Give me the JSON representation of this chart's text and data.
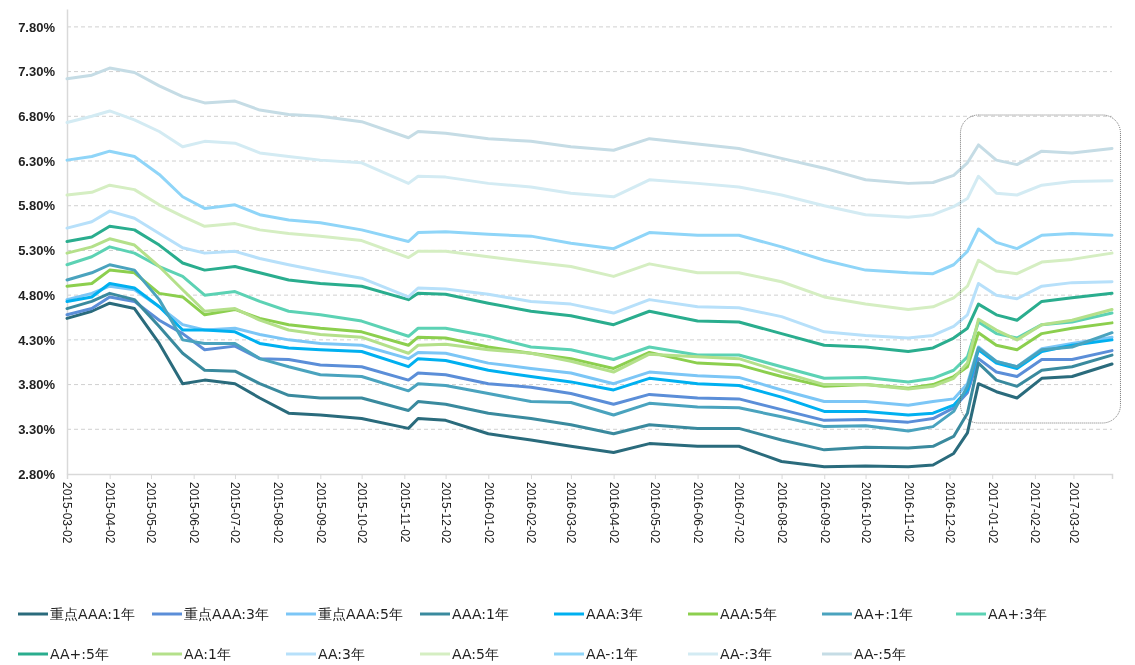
{
  "chart_data": {
    "type": "line",
    "x": [
      "2015-03-02",
      "2015-03-20",
      "2015-04-02",
      "2015-04-20",
      "2015-05-08",
      "2015-05-25",
      "2015-06-10",
      "2015-07-02",
      "2015-07-20",
      "2015-08-10",
      "2015-09-02",
      "2015-10-02",
      "2015-11-05",
      "2015-11-12",
      "2015-12-02",
      "2016-01-02",
      "2016-02-02",
      "2016-03-02",
      "2016-04-02",
      "2016-04-28",
      "2016-06-02",
      "2016-07-02",
      "2016-08-02",
      "2016-09-02",
      "2016-10-02",
      "2016-11-02",
      "2016-11-20",
      "2016-12-05",
      "2016-12-15",
      "2016-12-23",
      "2017-01-05",
      "2017-01-20",
      "2017-02-07",
      "2017-03-01",
      "2017-03-30"
    ],
    "series": [
      {
        "name": "重点AAA:1年",
        "color": "#2a6b7c",
        "values": [
          4.54,
          4.62,
          4.71,
          4.65,
          4.26,
          3.81,
          3.85,
          3.81,
          3.65,
          3.48,
          3.46,
          3.42,
          3.31,
          3.42,
          3.4,
          3.25,
          3.18,
          3.11,
          3.04,
          3.14,
          3.11,
          3.11,
          2.94,
          2.88,
          2.89,
          2.88,
          2.9,
          3.03,
          3.26,
          3.81,
          3.72,
          3.65,
          3.87,
          3.89,
          4.03
        ]
      },
      {
        "name": "重点AAA:3年",
        "color": "#5b8ed8",
        "values": [
          4.58,
          4.65,
          4.78,
          4.73,
          4.52,
          4.37,
          4.19,
          4.23,
          4.09,
          4.08,
          4.02,
          4.0,
          3.85,
          3.93,
          3.91,
          3.81,
          3.77,
          3.7,
          3.58,
          3.69,
          3.65,
          3.64,
          3.52,
          3.4,
          3.41,
          3.38,
          3.42,
          3.54,
          3.71,
          4.09,
          3.94,
          3.89,
          4.08,
          4.08,
          4.18
        ]
      },
      {
        "name": "重点AAA:5年",
        "color": "#7cc6f6",
        "values": [
          4.75,
          4.82,
          4.9,
          4.86,
          4.67,
          4.47,
          4.41,
          4.43,
          4.36,
          4.3,
          4.26,
          4.24,
          4.09,
          4.16,
          4.15,
          4.04,
          3.98,
          3.93,
          3.81,
          3.94,
          3.9,
          3.88,
          3.74,
          3.61,
          3.61,
          3.57,
          3.61,
          3.64,
          3.81,
          4.22,
          4.06,
          4.0,
          4.2,
          4.26,
          4.33
        ]
      },
      {
        "name": "AAA:1年",
        "color": "#3a8a9e",
        "values": [
          4.65,
          4.73,
          4.82,
          4.75,
          4.45,
          4.15,
          3.96,
          3.95,
          3.81,
          3.68,
          3.65,
          3.65,
          3.51,
          3.61,
          3.58,
          3.48,
          3.42,
          3.35,
          3.25,
          3.35,
          3.31,
          3.31,
          3.18,
          3.07,
          3.1,
          3.09,
          3.11,
          3.22,
          3.48,
          4.04,
          3.85,
          3.78,
          3.96,
          4.0,
          4.13
        ]
      },
      {
        "name": "AAA:3年",
        "color": "#00b0f0",
        "values": [
          4.73,
          4.78,
          4.93,
          4.88,
          4.67,
          4.41,
          4.41,
          4.39,
          4.26,
          4.21,
          4.19,
          4.17,
          4.0,
          4.09,
          4.07,
          3.96,
          3.89,
          3.83,
          3.74,
          3.87,
          3.81,
          3.79,
          3.66,
          3.5,
          3.5,
          3.46,
          3.48,
          3.57,
          3.74,
          4.19,
          4.04,
          3.98,
          4.17,
          4.24,
          4.3
        ]
      },
      {
        "name": "AAA:5年",
        "color": "#8ccf4e",
        "values": [
          4.9,
          4.93,
          5.08,
          5.05,
          4.82,
          4.78,
          4.58,
          4.64,
          4.54,
          4.47,
          4.43,
          4.39,
          4.24,
          4.33,
          4.32,
          4.22,
          4.15,
          4.09,
          3.98,
          4.16,
          4.04,
          4.02,
          3.89,
          3.78,
          3.8,
          3.76,
          3.8,
          3.89,
          4.0,
          4.38,
          4.24,
          4.19,
          4.37,
          4.43,
          4.49
        ]
      },
      {
        "name": "AA+:1年",
        "color": "#4aa3be",
        "values": [
          4.97,
          5.05,
          5.14,
          5.08,
          4.75,
          4.3,
          4.26,
          4.26,
          4.09,
          4.0,
          3.91,
          3.89,
          3.73,
          3.81,
          3.79,
          3.7,
          3.61,
          3.6,
          3.46,
          3.59,
          3.55,
          3.54,
          3.44,
          3.33,
          3.34,
          3.28,
          3.33,
          3.5,
          3.78,
          4.21,
          4.06,
          4.0,
          4.19,
          4.22,
          4.38
        ]
      },
      {
        "name": "AA+:3年",
        "color": "#5cd2b4",
        "values": [
          5.14,
          5.23,
          5.34,
          5.27,
          5.12,
          5.01,
          4.8,
          4.84,
          4.73,
          4.62,
          4.58,
          4.51,
          4.34,
          4.43,
          4.43,
          4.34,
          4.22,
          4.19,
          4.08,
          4.22,
          4.13,
          4.13,
          4.0,
          3.87,
          3.88,
          3.83,
          3.87,
          3.96,
          4.11,
          4.5,
          4.37,
          4.32,
          4.47,
          4.5,
          4.6
        ]
      },
      {
        "name": "AA+:5年",
        "color": "#2aad8e",
        "values": [
          5.4,
          5.45,
          5.57,
          5.53,
          5.36,
          5.16,
          5.08,
          5.12,
          5.05,
          4.97,
          4.93,
          4.9,
          4.75,
          4.82,
          4.81,
          4.71,
          4.62,
          4.57,
          4.47,
          4.62,
          4.51,
          4.5,
          4.37,
          4.24,
          4.22,
          4.17,
          4.21,
          4.32,
          4.43,
          4.7,
          4.58,
          4.52,
          4.73,
          4.77,
          4.82
        ]
      },
      {
        "name": "AA:1年",
        "color": "#b4e08a",
        "values": [
          5.27,
          5.34,
          5.43,
          5.36,
          5.12,
          4.86,
          4.62,
          4.65,
          4.52,
          4.41,
          4.36,
          4.33,
          4.15,
          4.24,
          4.25,
          4.19,
          4.15,
          4.06,
          3.94,
          4.14,
          4.11,
          4.09,
          3.94,
          3.8,
          3.8,
          3.75,
          3.78,
          3.87,
          4.04,
          4.53,
          4.41,
          4.3,
          4.47,
          4.52,
          4.64
        ]
      },
      {
        "name": "AA:3年",
        "color": "#b7e0fa",
        "values": [
          5.55,
          5.62,
          5.74,
          5.66,
          5.49,
          5.33,
          5.27,
          5.29,
          5.21,
          5.14,
          5.07,
          4.99,
          4.78,
          4.88,
          4.87,
          4.81,
          4.73,
          4.7,
          4.6,
          4.75,
          4.67,
          4.66,
          4.56,
          4.39,
          4.35,
          4.32,
          4.35,
          4.45,
          4.58,
          4.93,
          4.8,
          4.76,
          4.9,
          4.94,
          4.95
        ]
      },
      {
        "name": "AA:5年",
        "color": "#d5eec2",
        "values": [
          5.92,
          5.95,
          6.03,
          5.98,
          5.81,
          5.68,
          5.57,
          5.6,
          5.53,
          5.49,
          5.46,
          5.41,
          5.22,
          5.29,
          5.29,
          5.23,
          5.17,
          5.12,
          5.01,
          5.15,
          5.05,
          5.05,
          4.95,
          4.78,
          4.7,
          4.64,
          4.67,
          4.77,
          4.9,
          5.19,
          5.07,
          5.04,
          5.17,
          5.2,
          5.27
        ]
      },
      {
        "name": "AA-:1年",
        "color": "#8fd5f8",
        "values": [
          6.31,
          6.35,
          6.41,
          6.35,
          6.15,
          5.9,
          5.77,
          5.81,
          5.7,
          5.64,
          5.61,
          5.53,
          5.4,
          5.5,
          5.51,
          5.48,
          5.46,
          5.38,
          5.32,
          5.5,
          5.47,
          5.47,
          5.34,
          5.19,
          5.08,
          5.05,
          5.04,
          5.14,
          5.29,
          5.54,
          5.39,
          5.32,
          5.47,
          5.49,
          5.47
        ]
      },
      {
        "name": "AA-:3年",
        "color": "#d3ebf3",
        "values": [
          6.73,
          6.8,
          6.86,
          6.76,
          6.63,
          6.46,
          6.52,
          6.5,
          6.39,
          6.35,
          6.31,
          6.28,
          6.05,
          6.13,
          6.12,
          6.05,
          6.01,
          5.94,
          5.9,
          6.09,
          6.05,
          6.01,
          5.92,
          5.8,
          5.7,
          5.67,
          5.7,
          5.79,
          5.88,
          6.13,
          5.94,
          5.92,
          6.03,
          6.07,
          6.08
        ]
      },
      {
        "name": "AA-:5年",
        "color": "#c5dce5",
        "values": [
          7.22,
          7.26,
          7.34,
          7.29,
          7.14,
          7.02,
          6.95,
          6.97,
          6.87,
          6.82,
          6.8,
          6.74,
          6.56,
          6.63,
          6.61,
          6.55,
          6.52,
          6.46,
          6.42,
          6.55,
          6.49,
          6.44,
          6.33,
          6.22,
          6.09,
          6.05,
          6.06,
          6.14,
          6.28,
          6.48,
          6.31,
          6.26,
          6.41,
          6.39,
          6.44
        ]
      }
    ],
    "xlim": [
      "2015-03-02",
      "2017-03-30"
    ],
    "xticks": [
      "2015-03-02",
      "2015-04-02",
      "2015-05-02",
      "2015-06-02",
      "2015-07-02",
      "2015-08-02",
      "2015-09-02",
      "2015-10-02",
      "2015-11-02",
      "2015-12-02",
      "2016-01-02",
      "2016-02-02",
      "2016-03-02",
      "2016-04-02",
      "2016-05-02",
      "2016-06-02",
      "2016-07-02",
      "2016-08-02",
      "2016-09-02",
      "2016-10-02",
      "2016-11-02",
      "2016-12-02",
      "2017-01-02",
      "2017-02-02",
      "2017-03-02"
    ],
    "ylim": [
      2.8,
      8.0
    ],
    "yticks": [
      {
        "value": 2.8,
        "label": "2.80%"
      },
      {
        "value": 3.3,
        "label": "3.30%"
      },
      {
        "value": 3.8,
        "label": "3.80%"
      },
      {
        "value": 4.3,
        "label": "4.30%"
      },
      {
        "value": 4.8,
        "label": "4.80%"
      },
      {
        "value": 5.3,
        "label": "5.30%"
      },
      {
        "value": 5.8,
        "label": "5.80%"
      },
      {
        "value": 6.3,
        "label": "6.30%"
      },
      {
        "value": 6.8,
        "label": "6.80%"
      },
      {
        "value": 7.3,
        "label": "7.30%"
      },
      {
        "value": 7.8,
        "label": "7.80%"
      }
    ],
    "grid": "y",
    "legend": "bottom",
    "marker": "none",
    "line_style": "solid"
  }
}
